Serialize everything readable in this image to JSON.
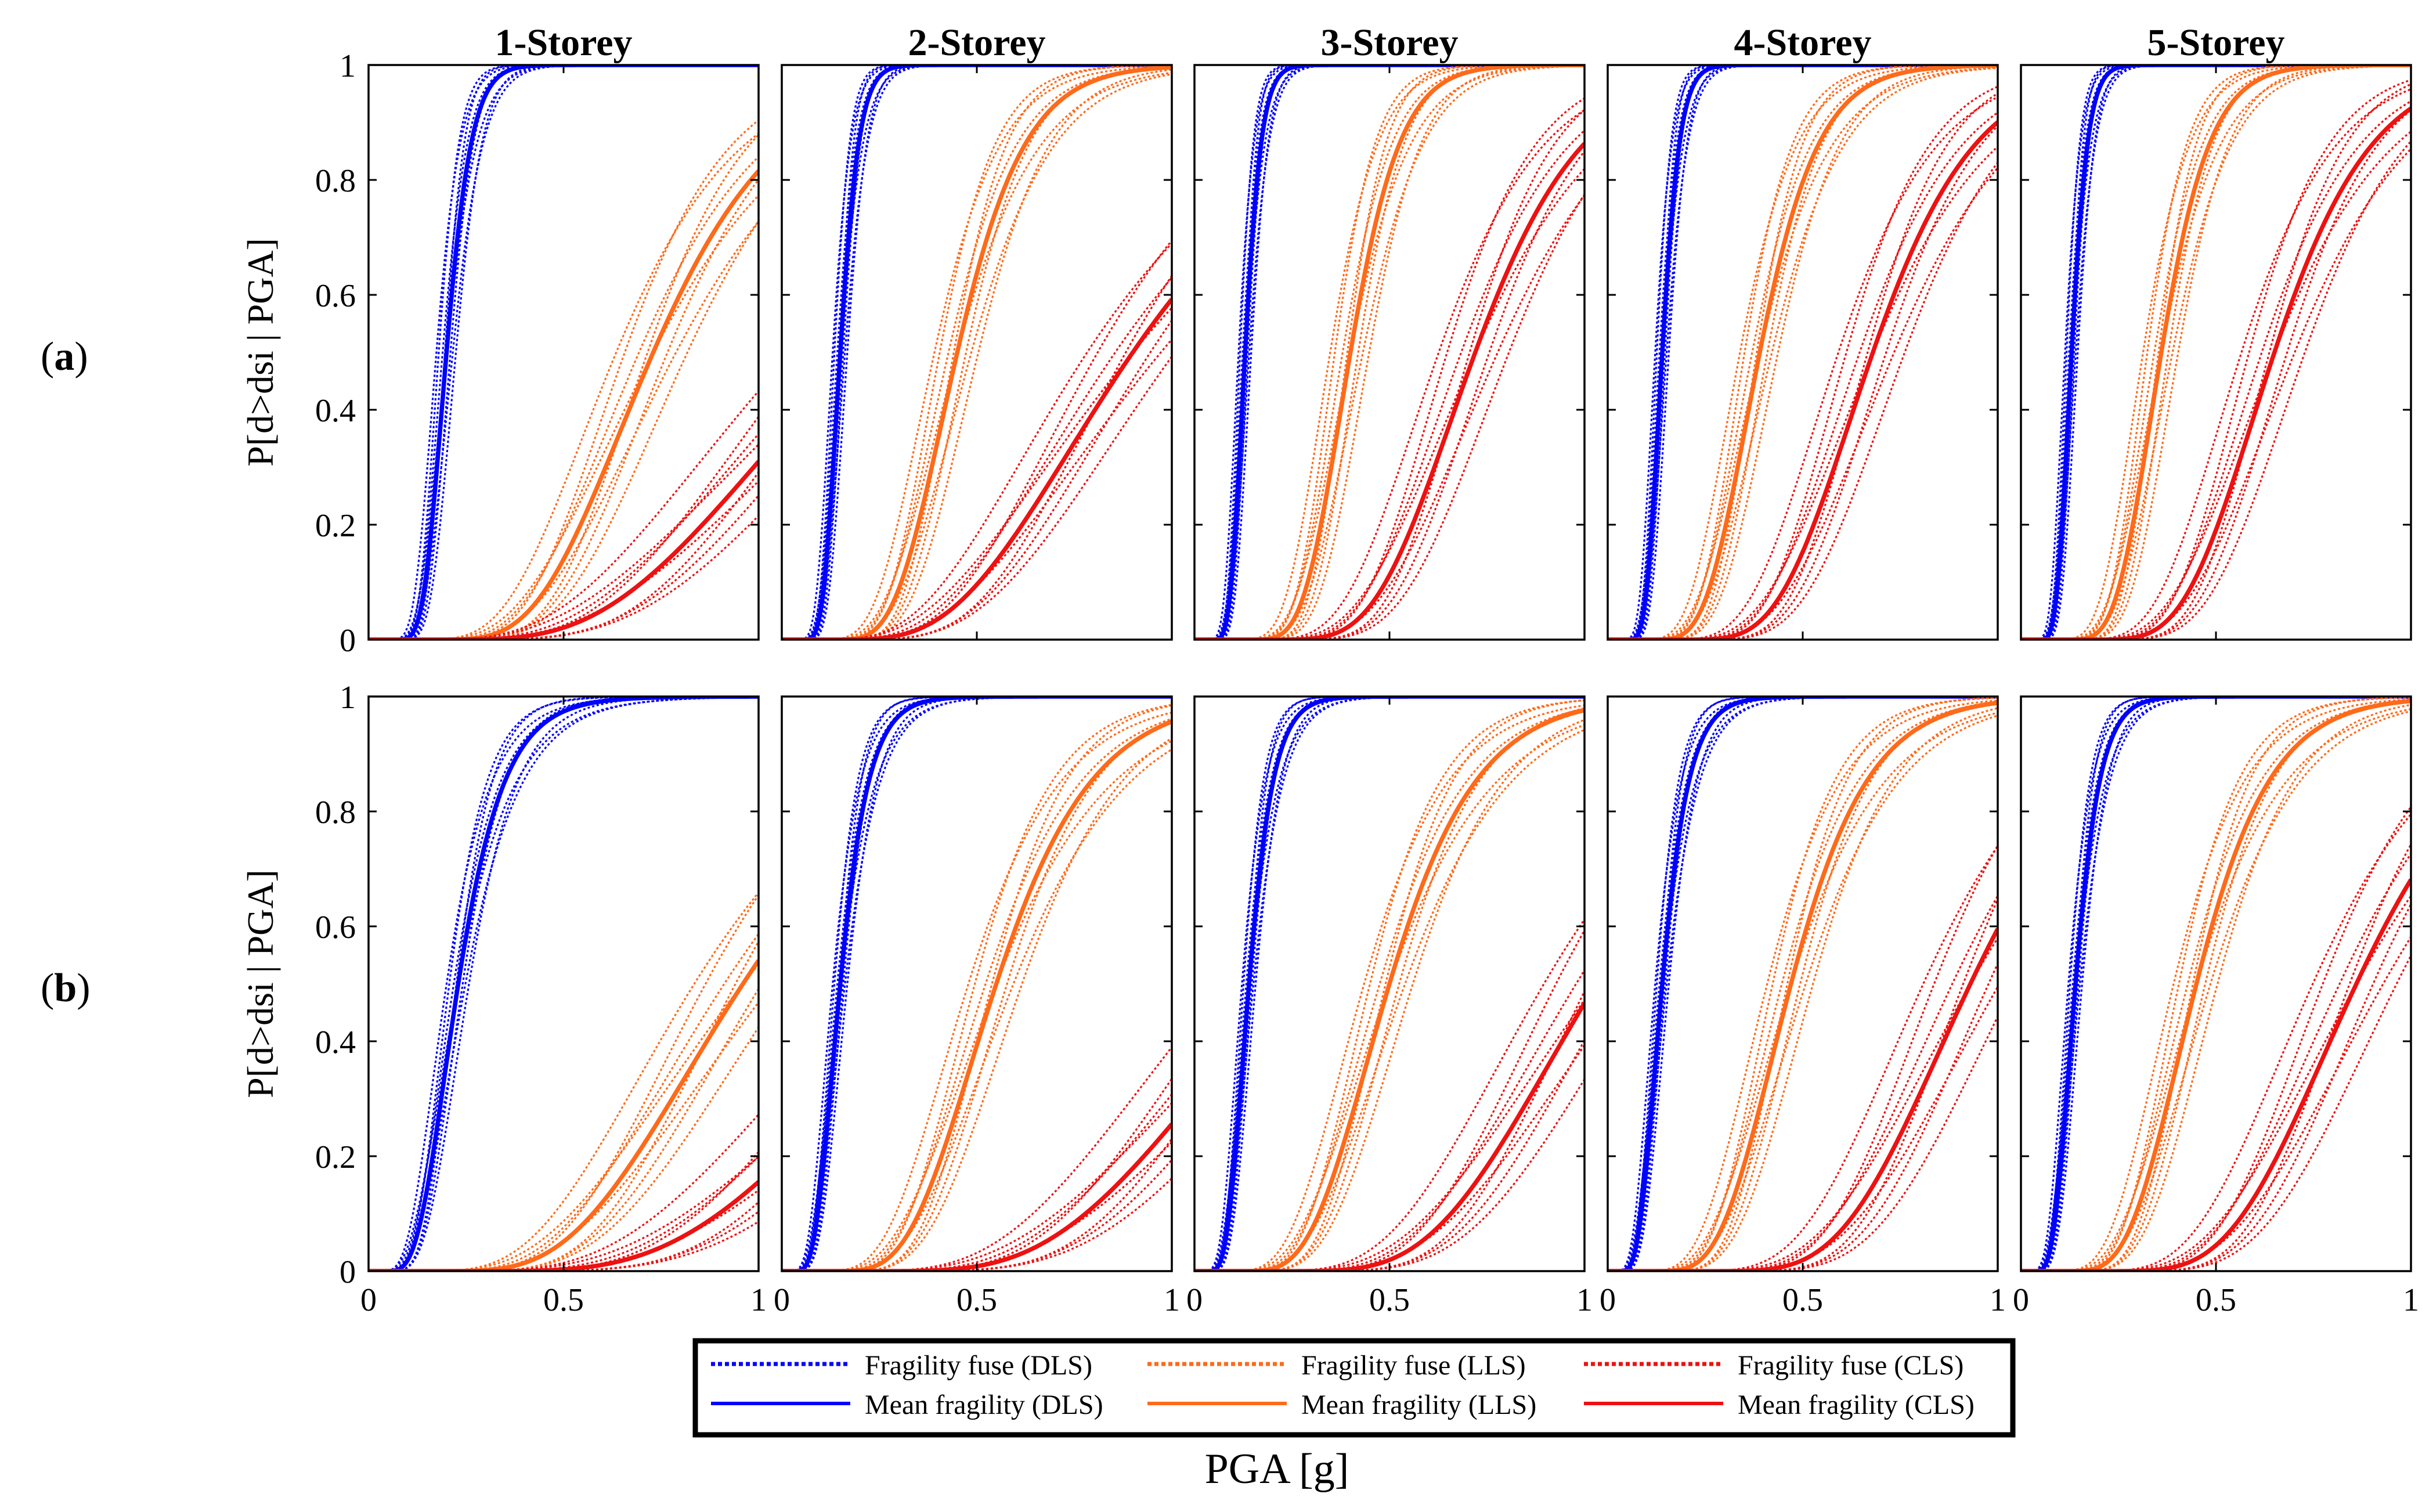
{
  "colors": {
    "dls": "#0000ff",
    "lls": "#ff6a1a",
    "cls": "#ee1111",
    "axis": "#000000"
  },
  "columns": [
    "1-Storey",
    "2-Storey",
    "3-Storey",
    "4-Storey",
    "5-Storey"
  ],
  "rows": [
    {
      "label": "(a)",
      "letter": "a",
      "ylabel": "P[d>dsi | PGA]"
    },
    {
      "label": "(b)",
      "letter": "b",
      "ylabel": "P[d>dsi | PGA]"
    }
  ],
  "xlabel": "PGA [g]",
  "x_ticks": [
    "0",
    "0.5",
    "1"
  ],
  "y_ticks": [
    "0",
    "0.2",
    "0.4",
    "0.6",
    "0.8",
    "1"
  ],
  "legend": {
    "entries": [
      {
        "label": "Fragility fuse (DLS)",
        "state": "dls",
        "style": "dotted"
      },
      {
        "label": "Fragility fuse (LLS)",
        "state": "lls",
        "style": "dotted"
      },
      {
        "label": "Fragility fuse (CLS)",
        "state": "cls",
        "style": "dotted"
      },
      {
        "label": "Mean fragility (DLS)",
        "state": "dls",
        "style": "solid"
      },
      {
        "label": "Mean fragility (LLS)",
        "state": "lls",
        "style": "solid"
      },
      {
        "label": "Mean fragility (CLS)",
        "state": "cls",
        "style": "solid"
      }
    ]
  },
  "chart_data": {
    "type": "line",
    "curve_model": "lognormal CDF: P = Phi(ln(PGA/median)/beta)",
    "xlim": [
      0,
      1
    ],
    "ylim": [
      0,
      1
    ],
    "grid": false,
    "legend_position": "bottom",
    "panels": [
      {
        "row": "a",
        "column": "1-Storey",
        "DLS": {
          "median": 0.2,
          "beta": 0.25
        },
        "LLS": {
          "median": 0.73,
          "beta": 0.35
        },
        "CLS": {
          "median": 1.25,
          "beta": 0.45
        }
      },
      {
        "row": "a",
        "column": "2-Storey",
        "DLS": {
          "median": 0.15,
          "beta": 0.25
        },
        "LLS": {
          "median": 0.45,
          "beta": 0.3
        },
        "CLS": {
          "median": 0.9,
          "beta": 0.45
        }
      },
      {
        "row": "a",
        "column": "3-Storey",
        "DLS": {
          "median": 0.13,
          "beta": 0.25
        },
        "LLS": {
          "median": 0.4,
          "beta": 0.25
        },
        "CLS": {
          "median": 0.72,
          "beta": 0.3
        }
      },
      {
        "row": "a",
        "column": "4-Storey",
        "DLS": {
          "median": 0.14,
          "beta": 0.25
        },
        "LLS": {
          "median": 0.39,
          "beta": 0.3
        },
        "CLS": {
          "median": 0.68,
          "beta": 0.3
        }
      },
      {
        "row": "a",
        "column": "5-Storey",
        "DLS": {
          "median": 0.13,
          "beta": 0.25
        },
        "LLS": {
          "median": 0.36,
          "beta": 0.27
        },
        "CLS": {
          "median": 0.65,
          "beta": 0.3
        }
      },
      {
        "row": "b",
        "column": "1-Storey",
        "DLS": {
          "median": 0.23,
          "beta": 0.4
        },
        "LLS": {
          "median": 0.96,
          "beta": 0.4
        },
        "CLS": {
          "median": 1.5,
          "beta": 0.4
        }
      },
      {
        "row": "b",
        "column": "2-Storey",
        "DLS": {
          "median": 0.15,
          "beta": 0.38
        },
        "LLS": {
          "median": 0.55,
          "beta": 0.35
        },
        "CLS": {
          "median": 1.3,
          "beta": 0.4
        }
      },
      {
        "row": "b",
        "column": "3-Storey",
        "DLS": {
          "median": 0.14,
          "beta": 0.35
        },
        "LLS": {
          "median": 0.5,
          "beta": 0.35
        },
        "CLS": {
          "median": 1.03,
          "beta": 0.35
        }
      },
      {
        "row": "b",
        "column": "4-Storey",
        "DLS": {
          "median": 0.14,
          "beta": 0.38
        },
        "LLS": {
          "median": 0.47,
          "beta": 0.33
        },
        "CLS": {
          "median": 0.93,
          "beta": 0.3
        }
      },
      {
        "row": "b",
        "column": "5-Storey",
        "DLS": {
          "median": 0.14,
          "beta": 0.35
        },
        "LLS": {
          "median": 0.45,
          "beta": 0.33
        },
        "CLS": {
          "median": 0.86,
          "beta": 0.32
        }
      }
    ]
  }
}
